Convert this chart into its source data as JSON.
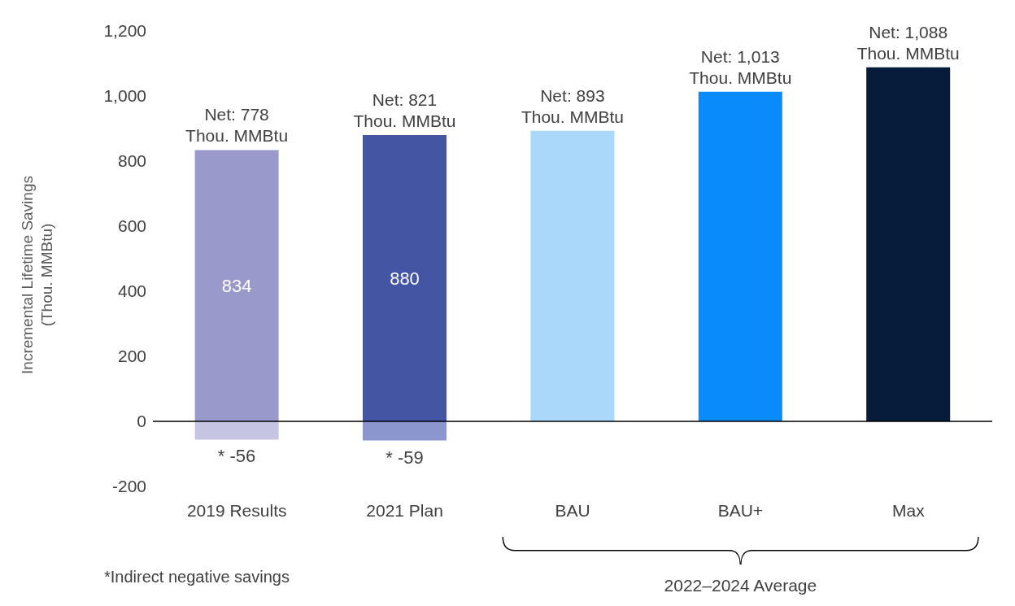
{
  "chart_data": {
    "type": "bar",
    "ylabel": "Incremental Lifetime Savings\n(Thou. MMBtu)",
    "categories": [
      "2019 Results",
      "2021 Plan",
      "BAU",
      "BAU+",
      "Max"
    ],
    "stacked": true,
    "series": [
      {
        "colors": [
          "#9999cc",
          "#4455a4",
          "#a9d8fb",
          "#0a8bfb",
          "#061c3a"
        ],
        "values": [
          834,
          880,
          893,
          1013,
          1088
        ],
        "value_labels": [
          "834",
          "880",
          null,
          null,
          null
        ]
      },
      {
        "colors": [
          "#c5c5e3",
          "#8b96cf",
          null,
          null,
          null
        ],
        "values": [
          -56,
          -59,
          null,
          null,
          null
        ],
        "value_labels": [
          "* -56",
          "* -59",
          null,
          null,
          null
        ]
      }
    ],
    "ylim": [
      -200,
      1200
    ],
    "yticks": [
      -200,
      0,
      200,
      400,
      600,
      800,
      {
        "value": 1000,
        "label": "1,000"
      },
      {
        "value": 1200,
        "label": "1,200"
      }
    ],
    "annotations": [
      {
        "text": "Net: 778\nThou. MMBtu",
        "x": "2019 Results",
        "y": 834
      },
      {
        "text": "Net: 821\nThou. MMBtu",
        "x": "2021 Plan",
        "y": 880
      },
      {
        "text": "Net: 893\nThou. MMBtu",
        "x": "BAU",
        "y": 893
      },
      {
        "text": "Net: 1,013\nThou. MMBtu",
        "x": "BAU+",
        "y": 1013
      },
      {
        "text": "Net: 1,088\nThou. MMBtu",
        "x": "Max",
        "y": 1088
      },
      "*Indirect negative savings",
      "2022–2024 Average"
    ]
  }
}
